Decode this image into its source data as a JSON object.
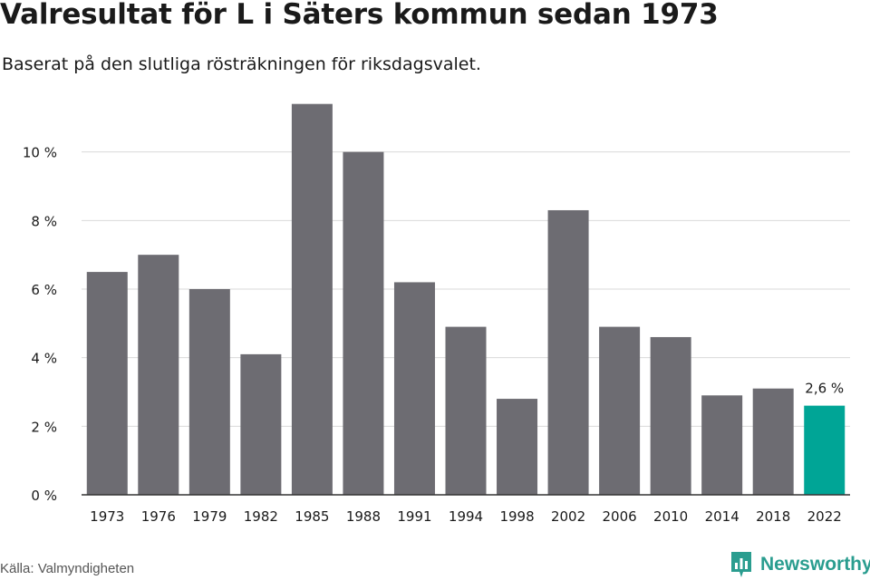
{
  "header": {
    "title": "Valresultat för L i Säters kommun sedan 1973",
    "subtitle": "Baserat på den slutliga rösträkningen för riksdagsvalet."
  },
  "footer": {
    "source": "Källa: Valmyndigheten",
    "brand": "Newsworthy",
    "brand_icon": "newsworthy-logo-icon"
  },
  "colors": {
    "bar": "#6d6c72",
    "highlight": "#00a596",
    "grid": "#d9d9d9",
    "axis": "#333333",
    "text": "#1a1a1a",
    "brand": "#2a9d8f"
  },
  "chart_data": {
    "type": "bar",
    "title": "Valresultat för L i Säters kommun sedan 1973",
    "subtitle": "Baserat på den slutliga rösträkningen för riksdagsvalet.",
    "xlabel": "",
    "ylabel": "",
    "categories": [
      "1973",
      "1976",
      "1979",
      "1982",
      "1985",
      "1988",
      "1991",
      "1994",
      "1998",
      "2002",
      "2006",
      "2010",
      "2014",
      "2018",
      "2022"
    ],
    "values": [
      6.5,
      7.0,
      6.0,
      4.1,
      11.4,
      10.0,
      6.2,
      4.9,
      2.8,
      8.3,
      4.9,
      4.6,
      2.9,
      3.1,
      2.6
    ],
    "ylim": [
      0,
      12
    ],
    "yticks": [
      0,
      2,
      4,
      6,
      8,
      10
    ],
    "ytick_labels": [
      "0 %",
      "2 %",
      "4 %",
      "6 %",
      "8 %",
      "10 %"
    ],
    "highlight_index": 14,
    "data_labels": [
      {
        "index": 14,
        "text": "2,6 %"
      }
    ],
    "grid": true,
    "legend": "none"
  }
}
